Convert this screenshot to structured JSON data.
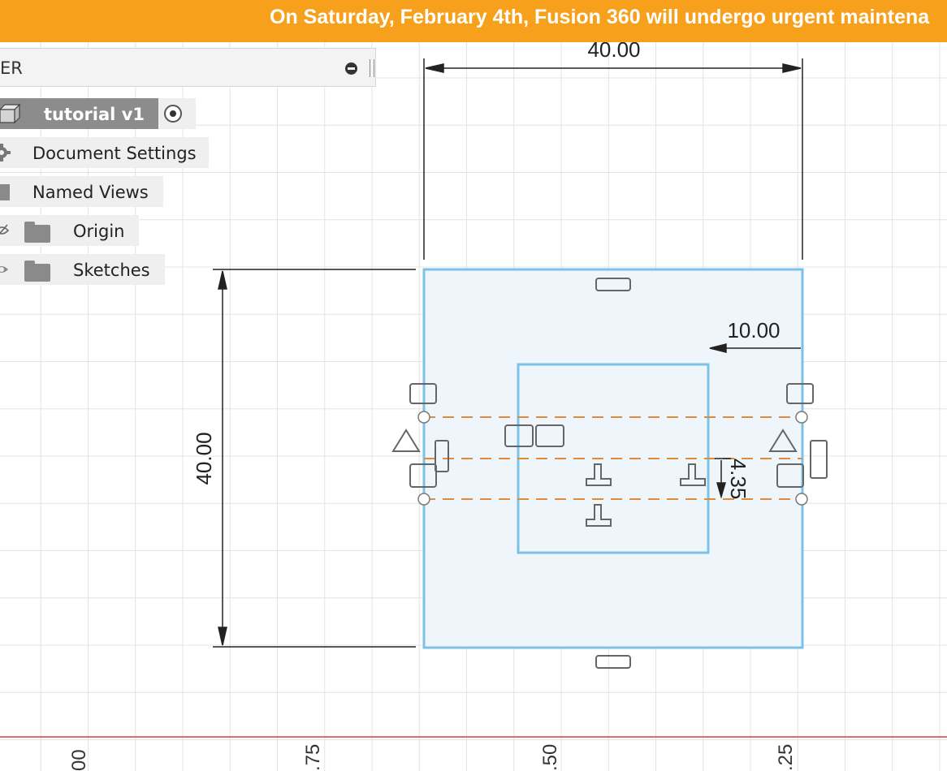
{
  "banner": {
    "text": "On Saturday, February 4th, Fusion 360 will undergo urgent maintena"
  },
  "browser": {
    "header_title": "ER",
    "items": [
      {
        "label": "tutorial v1",
        "icon": "component-box-icon",
        "active": true
      },
      {
        "label": "Document Settings",
        "icon": "gear-icon"
      },
      {
        "label": "Named Views",
        "icon": "folder-icon"
      },
      {
        "label": "Origin",
        "icon": "folder-icon",
        "visibility": "hidden-eye-icon"
      },
      {
        "label": "Sketches",
        "icon": "folder-icon",
        "visibility": "eye-icon"
      }
    ]
  },
  "sketch": {
    "dimensions": {
      "top_width": "40.00",
      "left_height": "40.00",
      "offset_right": "10.00",
      "vertical_small": "4.35"
    },
    "colors": {
      "profile_fill": "#e8f3fb",
      "profile_line": "#7ec1e6",
      "construction_line": "#e08a3c",
      "grid": "#e4e4e4",
      "axis": "#e26b6b"
    }
  },
  "ruler": {
    "labels": [
      "00",
      ".75",
      ".50",
      ".25"
    ]
  }
}
